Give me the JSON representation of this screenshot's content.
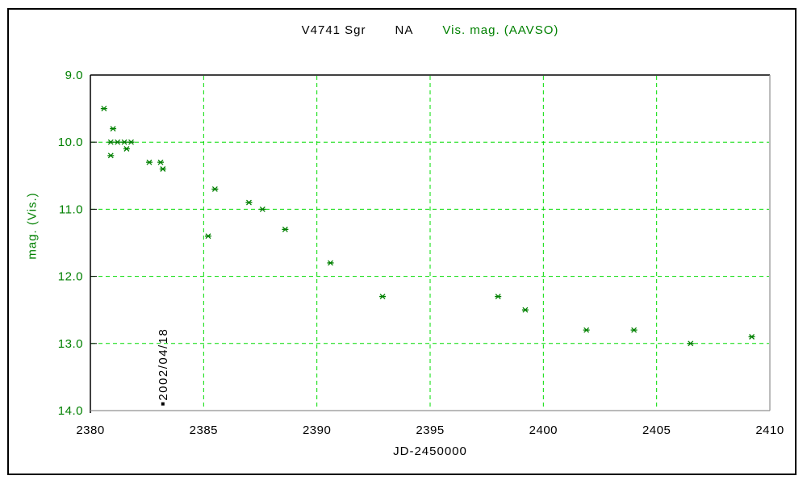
{
  "window": {
    "background": "#ffffff",
    "border_color": "#000000"
  },
  "chart_data": {
    "type": "scatter",
    "title_segments": [
      {
        "text": "V4741 Sgr",
        "color": "#000000"
      },
      {
        "text": "NA",
        "color": "#000000"
      },
      {
        "text": "Vis. mag. (AAVSO)",
        "color": "#008000"
      }
    ],
    "xlabel": "JD-2450000",
    "ylabel": "mag. (Vis.)",
    "xlim": [
      2380,
      2410
    ],
    "ylim": [
      9.0,
      14.0
    ],
    "y_axis_inverted": true,
    "grid": true,
    "legend_position": "none",
    "x_ticks": [
      "2380",
      "2385",
      "2390",
      "2395",
      "2400",
      "2405",
      "2410"
    ],
    "y_ticks": [
      "9.0",
      "10.0",
      "11.0",
      "12.0",
      "13.0",
      "14.0"
    ],
    "colors": {
      "grid_green": "#00dc00",
      "marker_green": "#008000",
      "axis_text_green": "#008000",
      "axis_text_black": "#000000",
      "frame_dark": "#000000",
      "frame_light": "#909090"
    },
    "series": [
      {
        "name": "Vis. mag. (AAVSO)",
        "marker": "asterisk",
        "color": "#008000",
        "points": [
          [
            2380.6,
            9.5
          ],
          [
            2380.9,
            10.0
          ],
          [
            2380.9,
            10.2
          ],
          [
            2381.0,
            9.8
          ],
          [
            2381.2,
            10.0
          ],
          [
            2381.5,
            10.0
          ],
          [
            2381.6,
            10.1
          ],
          [
            2381.8,
            10.0
          ],
          [
            2382.6,
            10.3
          ],
          [
            2383.1,
            10.3
          ],
          [
            2383.2,
            10.4
          ],
          [
            2385.2,
            11.4
          ],
          [
            2385.5,
            10.7
          ],
          [
            2387.0,
            10.9
          ],
          [
            2387.6,
            11.0
          ],
          [
            2388.6,
            11.3
          ],
          [
            2390.6,
            11.8
          ],
          [
            2392.9,
            12.3
          ],
          [
            2398.0,
            12.3
          ],
          [
            2399.2,
            12.5
          ],
          [
            2401.9,
            12.8
          ],
          [
            2404.0,
            12.8
          ],
          [
            2406.5,
            13.0
          ],
          [
            2409.2,
            12.9
          ]
        ]
      }
    ],
    "annotation": {
      "label": "2002/04/18",
      "x": 2383.2,
      "y": 13.9,
      "color": "#000000",
      "marker": "dot"
    }
  }
}
